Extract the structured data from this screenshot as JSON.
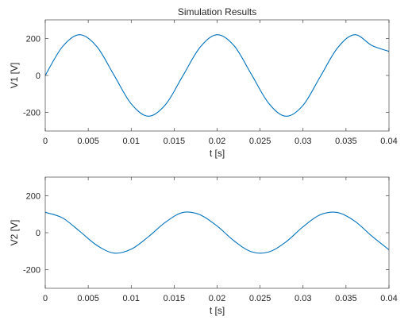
{
  "chart_data": [
    {
      "type": "line",
      "title": "Simulation Results",
      "xlabel": "t [s]",
      "ylabel": "V1 [V]",
      "xlim": [
        0,
        0.04
      ],
      "ylim": [
        -300,
        300
      ],
      "xticks": [
        0,
        0.005,
        0.01,
        0.015,
        0.02,
        0.025,
        0.03,
        0.035,
        0.04
      ],
      "xtick_labels": [
        "0",
        "0.005",
        "0.01",
        "0.015",
        "0.02",
        "0.025",
        "0.03",
        "0.035",
        "0.04"
      ],
      "yticks": [
        -200,
        0,
        200
      ],
      "ytick_labels": [
        "-200",
        "0",
        "200"
      ],
      "grid": false,
      "series": [
        {
          "x": [
            0,
            0.002,
            0.004,
            0.006,
            0.008,
            0.01,
            0.012,
            0.014,
            0.016,
            0.018,
            0.02,
            0.022,
            0.024,
            0.026,
            0.028,
            0.03,
            0.032,
            0.034,
            0.036,
            0.038,
            0.04
          ],
          "values": [
            0,
            155,
            220,
            156,
            2,
            -153,
            -220,
            -157,
            -3,
            151,
            220,
            159,
            5,
            -150,
            -220,
            -161,
            -7,
            148,
            220,
            162,
            130
          ],
          "color": "#0072bd"
        }
      ]
    },
    {
      "type": "line",
      "title": "",
      "xlabel": "t [s]",
      "ylabel": "V2 [V]",
      "xlim": [
        0,
        0.04
      ],
      "ylim": [
        -300,
        300
      ],
      "xticks": [
        0,
        0.005,
        0.01,
        0.015,
        0.02,
        0.025,
        0.03,
        0.035,
        0.04
      ],
      "xtick_labels": [
        "0",
        "0.005",
        "0.01",
        "0.015",
        "0.02",
        "0.025",
        "0.03",
        "0.035",
        "0.04"
      ],
      "yticks": [
        -200,
        0,
        200
      ],
      "ytick_labels": [
        "-200",
        "0",
        "200"
      ],
      "grid": false,
      "series": [
        {
          "x": [
            0,
            0.002,
            0.004,
            0.006,
            0.008,
            0.01,
            0.012,
            0.014,
            0.016,
            0.018,
            0.02,
            0.022,
            0.024,
            0.026,
            0.028,
            0.03,
            0.032,
            0.034,
            0.036,
            0.038,
            0.04
          ],
          "values": [
            110,
            80,
            8,
            -68,
            -110,
            -89,
            -22,
            57,
            109,
            97,
            36,
            -45,
            -103,
            -104,
            -50,
            32,
            97,
            109,
            63,
            -18,
            -92
          ],
          "color": "#0072bd"
        }
      ]
    }
  ]
}
